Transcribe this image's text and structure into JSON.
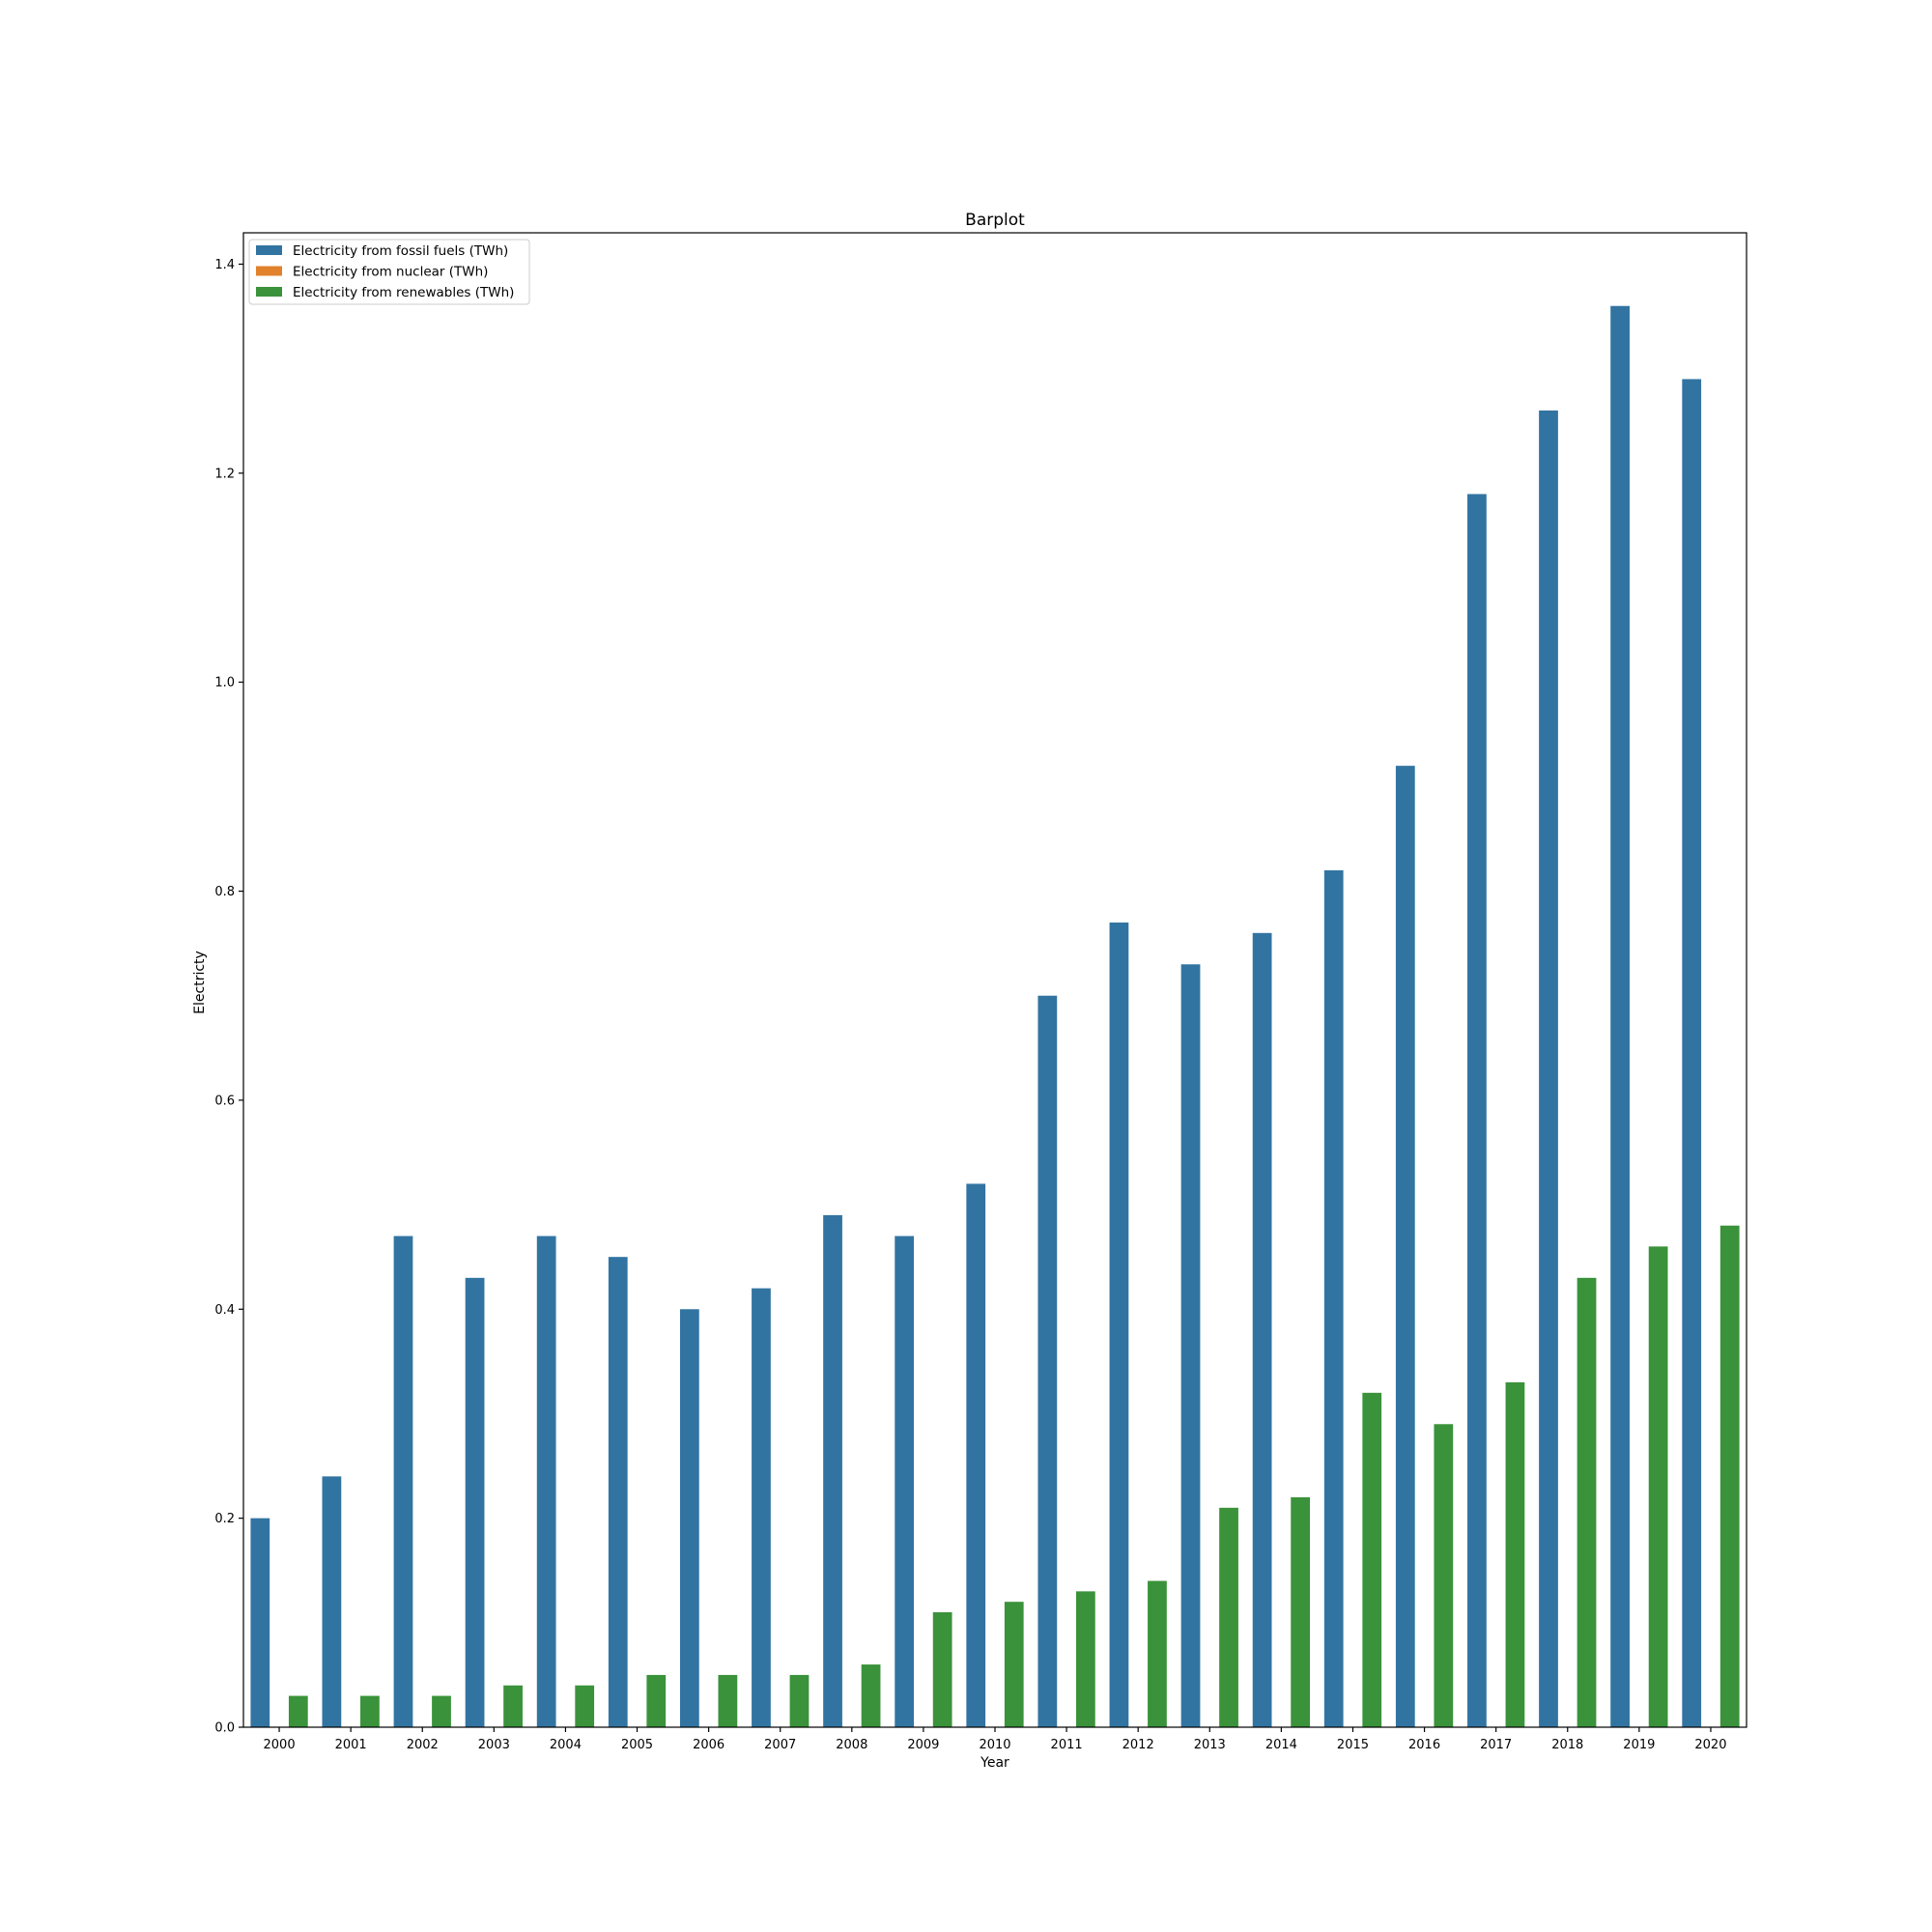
{
  "chart_data": {
    "type": "bar",
    "title": "Barplot",
    "xlabel": "Year",
    "ylabel": "Electricty",
    "ylim": [
      0,
      1.43
    ],
    "yticks": [
      0.0,
      0.2,
      0.4,
      0.6,
      0.8,
      1.0,
      1.2,
      1.4
    ],
    "ytick_labels": [
      "0.0",
      "0.2",
      "0.4",
      "0.6",
      "0.8",
      "1.0",
      "1.2",
      "1.4"
    ],
    "grid": false,
    "legend_position": "top-left",
    "categories": [
      "2000",
      "2001",
      "2002",
      "2003",
      "2004",
      "2005",
      "2006",
      "2007",
      "2008",
      "2009",
      "2010",
      "2011",
      "2012",
      "2013",
      "2014",
      "2015",
      "2016",
      "2017",
      "2018",
      "2019",
      "2020"
    ],
    "series": [
      {
        "name": "Electricity from fossil fuels (TWh)",
        "color": "#3274a1",
        "values": [
          0.2,
          0.24,
          0.47,
          0.43,
          0.47,
          0.45,
          0.4,
          0.42,
          0.49,
          0.47,
          0.52,
          0.7,
          0.77,
          0.73,
          0.76,
          0.82,
          0.92,
          1.18,
          1.26,
          1.36,
          1.29
        ]
      },
      {
        "name": "Electricity from nuclear (TWh)",
        "color": "#e1812c",
        "values": [
          0,
          0,
          0,
          0,
          0,
          0,
          0,
          0,
          0,
          0,
          0,
          0,
          0,
          0,
          0,
          0,
          0,
          0,
          0,
          0,
          0
        ]
      },
      {
        "name": "Electricity from renewables (TWh)",
        "color": "#3a923a",
        "values": [
          0.03,
          0.03,
          0.03,
          0.04,
          0.04,
          0.05,
          0.05,
          0.05,
          0.06,
          0.11,
          0.12,
          0.13,
          0.14,
          0.21,
          0.22,
          0.32,
          0.29,
          0.33,
          0.43,
          0.46,
          0.48
        ]
      }
    ]
  }
}
